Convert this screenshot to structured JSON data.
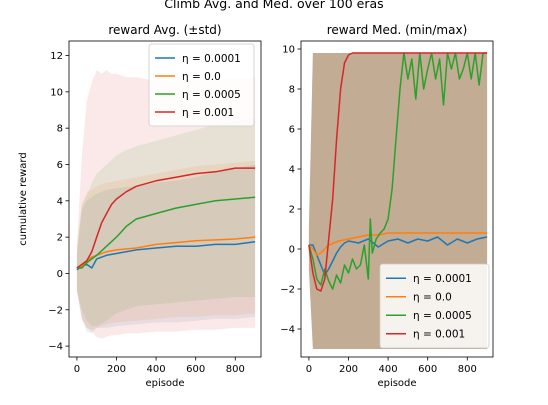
{
  "chart_data": [
    {
      "type": "line",
      "suptitle": "Climb Avg. and Med. over 100 eras",
      "title": "reward Avg. (±std)",
      "xlabel": "episode",
      "ylabel": "cumulative reward",
      "xlim": [
        -40,
        930
      ],
      "ylim": [
        -4.6,
        12.8
      ],
      "xticks": [
        0,
        200,
        400,
        600,
        800
      ],
      "yticks": [
        -4,
        -2,
        0,
        2,
        4,
        6,
        8,
        10,
        12
      ],
      "xtick_labels": [
        "0",
        "200",
        "400",
        "600",
        "800"
      ],
      "ytick_labels": [
        "−4",
        "−2",
        "0",
        "2",
        "4",
        "6",
        "8",
        "10",
        "12"
      ],
      "legend_position": "upper-right",
      "series": [
        {
          "name": "η = 0.0001",
          "color": "#1f77b4",
          "x": [
            0,
            25,
            50,
            75,
            100,
            150,
            200,
            300,
            400,
            500,
            600,
            700,
            800,
            900
          ],
          "y": [
            0.2,
            0.4,
            0.5,
            0.3,
            0.8,
            1.0,
            1.1,
            1.3,
            1.4,
            1.5,
            1.5,
            1.6,
            1.6,
            1.75
          ],
          "band_lower": [
            -0.8,
            -2.5,
            -3.2,
            -3.3,
            -3.0,
            -3.0,
            -2.9,
            -2.8,
            -2.7,
            -2.7,
            -2.6,
            -2.5,
            -2.5,
            -2.4
          ],
          "band_upper": [
            1.0,
            3.5,
            4.0,
            4.2,
            4.4,
            4.6,
            4.7,
            4.8,
            5.0,
            5.1,
            5.3,
            5.6,
            5.8,
            6.0
          ]
        },
        {
          "name": "η = 0.0",
          "color": "#ff7f0e",
          "x": [
            0,
            25,
            50,
            75,
            100,
            150,
            200,
            300,
            400,
            500,
            600,
            700,
            800,
            900
          ],
          "y": [
            0.3,
            0.4,
            0.7,
            0.9,
            1.0,
            1.2,
            1.3,
            1.4,
            1.6,
            1.7,
            1.8,
            1.85,
            1.9,
            2.0
          ],
          "band_lower": [
            -1.0,
            -2.5,
            -3.0,
            -3.1,
            -3.0,
            -2.8,
            -2.7,
            -2.6,
            -2.5,
            -2.4,
            -2.4,
            -2.3,
            -2.3,
            -2.2
          ],
          "band_upper": [
            1.2,
            3.8,
            4.5,
            4.6,
            4.8,
            5.0,
            5.1,
            5.3,
            5.5,
            5.7,
            5.9,
            6.0,
            6.1,
            6.2
          ]
        },
        {
          "name": "η = 0.0005",
          "color": "#2ca02c",
          "x": [
            0,
            25,
            50,
            75,
            100,
            150,
            200,
            250,
            300,
            400,
            500,
            600,
            700,
            800,
            900
          ],
          "y": [
            0.3,
            0.3,
            0.6,
            0.8,
            1.0,
            1.5,
            2.0,
            2.6,
            3.0,
            3.3,
            3.6,
            3.8,
            4.0,
            4.1,
            4.2
          ],
          "band_lower": [
            -1.0,
            -2.0,
            -2.6,
            -2.9,
            -2.9,
            -2.6,
            -2.2,
            -2.0,
            -1.8,
            -1.7,
            -1.6,
            -1.5,
            -1.4,
            -1.3,
            -1.3
          ],
          "band_upper": [
            1.5,
            3.8,
            4.3,
            5.0,
            5.5,
            6.0,
            6.5,
            6.8,
            7.0,
            7.3,
            7.6,
            7.9,
            8.2,
            8.4,
            8.5
          ]
        },
        {
          "name": "η = 0.001",
          "color": "#d62728",
          "x": [
            0,
            25,
            50,
            75,
            100,
            125,
            150,
            175,
            200,
            250,
            300,
            400,
            500,
            600,
            700,
            800,
            900
          ],
          "y": [
            0.3,
            0.5,
            0.7,
            1.2,
            2.0,
            2.8,
            3.3,
            3.8,
            4.1,
            4.5,
            4.8,
            5.1,
            5.3,
            5.5,
            5.6,
            5.8,
            5.8
          ],
          "band_lower": [
            -1.0,
            -2.5,
            -3.0,
            -3.2,
            -3.5,
            -3.6,
            -3.5,
            -3.4,
            -3.4,
            -3.3,
            -3.3,
            -3.2,
            -3.2,
            -3.1,
            -3.1,
            -3.0,
            -3.0
          ],
          "band_upper": [
            1.5,
            6.5,
            9.5,
            10.5,
            11.2,
            11.0,
            11.2,
            11.0,
            11.0,
            10.8,
            10.8,
            10.6,
            10.7,
            10.6,
            10.7,
            10.8,
            10.8
          ]
        }
      ]
    },
    {
      "type": "line",
      "title": "reward Med. (min/max)",
      "xlabel": "episode",
      "ylabel": "",
      "xlim": [
        -40,
        930
      ],
      "ylim": [
        -5.4,
        10.4
      ],
      "xticks": [
        0,
        200,
        400,
        600,
        800
      ],
      "yticks": [
        -4,
        -2,
        0,
        2,
        4,
        6,
        8,
        10
      ],
      "xtick_labels": [
        "0",
        "200",
        "400",
        "600",
        "800"
      ],
      "ytick_labels": [
        "−4",
        "−2",
        "0",
        "2",
        "4",
        "6",
        "8",
        "10"
      ],
      "legend_position": "lower-right",
      "series": [
        {
          "name": "η = 0.0001",
          "color": "#1f77b4",
          "x": [
            0,
            20,
            40,
            60,
            80,
            100,
            120,
            140,
            160,
            180,
            200,
            250,
            300,
            350,
            400,
            450,
            500,
            550,
            600,
            650,
            700,
            750,
            800,
            850,
            900
          ],
          "y": [
            0.2,
            0.2,
            -0.3,
            -0.8,
            -1.3,
            -1.0,
            -0.6,
            -0.2,
            0.1,
            0.3,
            0.4,
            0.3,
            0.5,
            0.1,
            0.4,
            0.5,
            0.3,
            0.5,
            0.4,
            0.6,
            0.2,
            0.5,
            0.3,
            0.5,
            0.6
          ],
          "band_lower": [
            -1.0,
            -5.0,
            -5.0,
            -5.0,
            -5.0,
            -5.0,
            -5.0,
            -5.0,
            -5.0,
            -5.0,
            -5.0,
            -5.0,
            -5.0,
            -5.0,
            -5.0,
            -5.0,
            -5.0,
            -5.0,
            -5.0,
            -5.0,
            -5.0,
            -5.0,
            -5.0,
            -5.0,
            -5.0
          ],
          "band_upper": [
            1.0,
            9.8,
            9.8,
            9.8,
            9.8,
            9.8,
            9.8,
            9.8,
            9.8,
            9.8,
            9.8,
            9.8,
            9.8,
            9.8,
            9.8,
            9.8,
            9.8,
            9.8,
            9.8,
            9.8,
            9.8,
            9.8,
            9.8,
            9.8,
            9.8
          ]
        },
        {
          "name": "η = 0.0",
          "color": "#ff7f0e",
          "x": [
            0,
            20,
            40,
            60,
            80,
            100,
            150,
            200,
            250,
            300,
            350,
            400,
            500,
            600,
            700,
            800,
            900
          ],
          "y": [
            0.2,
            0.0,
            -0.3,
            -0.2,
            0.0,
            0.2,
            0.4,
            0.5,
            0.6,
            0.7,
            0.7,
            0.8,
            0.8,
            0.8,
            0.8,
            0.8,
            0.8
          ],
          "band_lower": [
            -1.0,
            -5.0,
            -5.0,
            -5.0,
            -5.0,
            -5.0,
            -5.0,
            -5.0,
            -5.0,
            -5.0,
            -5.0,
            -5.0,
            -5.0,
            -5.0,
            -5.0,
            -5.0,
            -5.0
          ],
          "band_upper": [
            1.0,
            9.8,
            9.8,
            9.8,
            9.8,
            9.8,
            9.8,
            9.8,
            9.8,
            9.8,
            9.8,
            9.8,
            9.8,
            9.8,
            9.8,
            9.8,
            9.8
          ]
        },
        {
          "name": "η = 0.0005",
          "color": "#2ca02c",
          "x": [
            0,
            20,
            40,
            60,
            80,
            100,
            120,
            140,
            160,
            180,
            200,
            220,
            240,
            260,
            280,
            300,
            310,
            320,
            340,
            360,
            380,
            400,
            420,
            440,
            460,
            480,
            500,
            520,
            540,
            560,
            580,
            600,
            620,
            640,
            660,
            680,
            700,
            720,
            740,
            760,
            780,
            800,
            820,
            840,
            860,
            880,
            900
          ],
          "y": [
            0.2,
            -0.5,
            -1.5,
            -1.8,
            -1.0,
            -1.6,
            -2.0,
            -1.3,
            -1.7,
            -0.8,
            -1.2,
            -0.5,
            -1.0,
            -0.8,
            0.2,
            -1.5,
            1.5,
            -0.2,
            0.5,
            0.8,
            1.0,
            1.5,
            3.0,
            5.5,
            8.0,
            9.8,
            8.5,
            9.5,
            7.5,
            9.8,
            8.0,
            9.0,
            9.8,
            8.5,
            9.5,
            7.2,
            9.8,
            9.0,
            9.8,
            8.5,
            9.0,
            9.8,
            8.5,
            9.8,
            8.2,
            9.8,
            9.8
          ],
          "band_lower": [
            -1.0,
            -5.0,
            -5.0,
            -5.0,
            -5.0,
            -5.0,
            -5.0,
            -5.0,
            -5.0,
            -5.0,
            -5.0,
            -5.0,
            -5.0,
            -5.0,
            -5.0,
            -5.0,
            -5.0,
            -5.0,
            -5.0,
            -5.0,
            -5.0,
            -5.0,
            -5.0,
            -5.0,
            -5.0,
            -5.0,
            -5.0,
            -5.0,
            -5.0,
            -5.0,
            -5.0,
            -5.0,
            -5.0,
            -5.0,
            -5.0,
            -5.0,
            -5.0,
            -5.0,
            -5.0,
            -5.0,
            -5.0,
            -5.0,
            -5.0,
            -5.0,
            -5.0,
            -5.0,
            -5.0
          ],
          "band_upper": [
            1.0,
            9.8,
            9.8,
            9.8,
            9.8,
            9.8,
            9.8,
            9.8,
            9.8,
            9.8,
            9.8,
            9.8,
            9.8,
            9.8,
            9.8,
            9.8,
            9.8,
            9.8,
            9.8,
            9.8,
            9.8,
            9.8,
            9.8,
            9.8,
            9.8,
            9.8,
            9.8,
            9.8,
            9.8,
            9.8,
            9.8,
            9.8,
            9.8,
            9.8,
            9.8,
            9.8,
            9.8,
            9.8,
            9.8,
            9.8,
            9.8,
            9.8,
            9.8,
            9.8,
            9.8,
            9.8,
            9.8
          ]
        },
        {
          "name": "η = 0.001",
          "color": "#d62728",
          "x": [
            0,
            20,
            40,
            60,
            80,
            100,
            120,
            140,
            160,
            180,
            200,
            220,
            240,
            260,
            300,
            400,
            500,
            600,
            700,
            800,
            900
          ],
          "y": [
            0.2,
            -1.2,
            -2.0,
            -2.1,
            -1.5,
            0.5,
            2.5,
            5.5,
            8.0,
            9.3,
            9.7,
            9.8,
            9.8,
            9.8,
            9.8,
            9.8,
            9.8,
            9.8,
            9.8,
            9.8,
            9.8
          ],
          "band_lower": [
            -1.0,
            -5.0,
            -5.0,
            -5.0,
            -5.0,
            -5.0,
            -5.0,
            -5.0,
            -5.0,
            -5.0,
            -5.0,
            -5.0,
            -5.0,
            -5.0,
            -5.0,
            -5.0,
            -5.0,
            -5.0,
            -5.0,
            -5.0,
            -5.0
          ],
          "band_upper": [
            1.0,
            9.8,
            9.8,
            9.8,
            9.8,
            9.8,
            9.8,
            9.8,
            9.8,
            9.8,
            9.8,
            9.8,
            9.8,
            9.8,
            9.8,
            9.8,
            9.8,
            9.8,
            9.8,
            9.8,
            9.8
          ]
        }
      ]
    }
  ]
}
